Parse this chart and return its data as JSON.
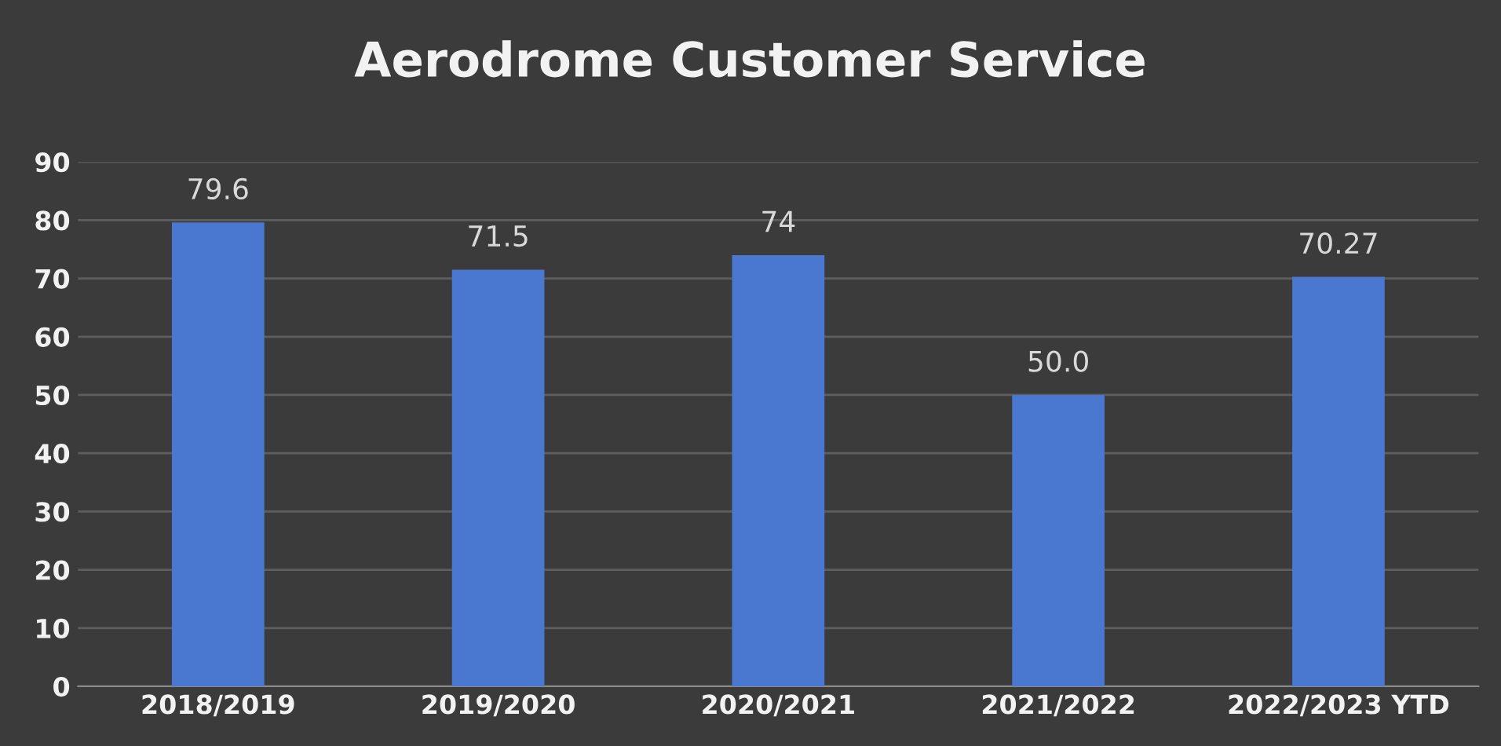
{
  "chart_data": {
    "type": "bar",
    "title": "Aerodrome Customer Service",
    "categories": [
      "2018/2019",
      "2019/2020",
      "2020/2021",
      "2021/2022",
      "2022/2023 YTD"
    ],
    "values": [
      79.6,
      71.5,
      74,
      50.0,
      70.27
    ],
    "value_labels": [
      "79.6",
      "71.5",
      "74",
      "50.0",
      "70.27"
    ],
    "color": "#4a78d0",
    "ylim": [
      0,
      90
    ],
    "yticks": [
      0,
      10,
      20,
      30,
      40,
      50,
      60,
      70,
      80,
      90
    ],
    "grid": "y",
    "legend": false
  }
}
